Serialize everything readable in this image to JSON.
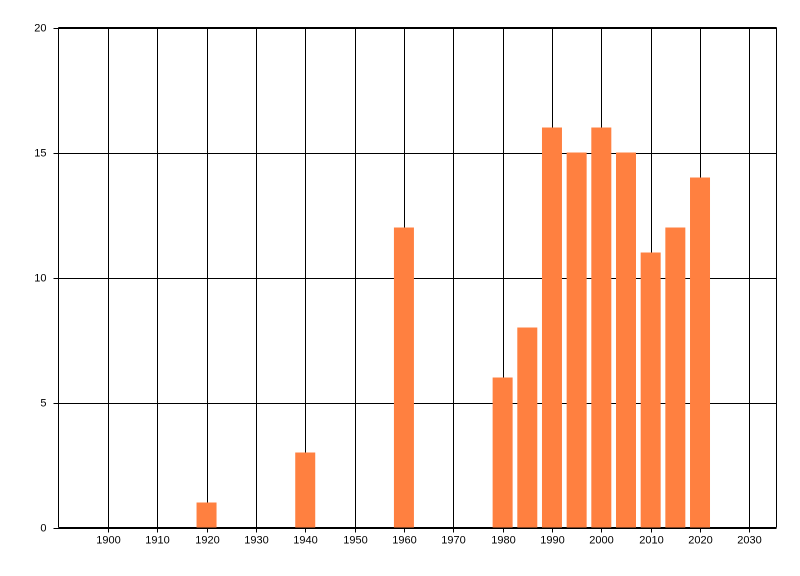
{
  "chart_data": {
    "type": "bar",
    "x": [
      1920,
      1940,
      1960,
      1980,
      1985,
      1990,
      1995,
      2000,
      2005,
      2010,
      2015,
      2020
    ],
    "values": [
      1,
      3,
      12,
      6,
      8,
      16,
      15,
      16,
      15,
      11,
      12,
      14
    ],
    "color": "#ff8040",
    "xlim": [
      1890,
      2035.5
    ],
    "xticks": [
      1900,
      1910,
      1920,
      1930,
      1940,
      1950,
      1960,
      1970,
      1980,
      1990,
      2000,
      2010,
      2020,
      2030
    ],
    "ylim": [
      0,
      20
    ],
    "yticks": [
      0,
      5,
      10,
      15,
      20
    ],
    "grid": true
  }
}
